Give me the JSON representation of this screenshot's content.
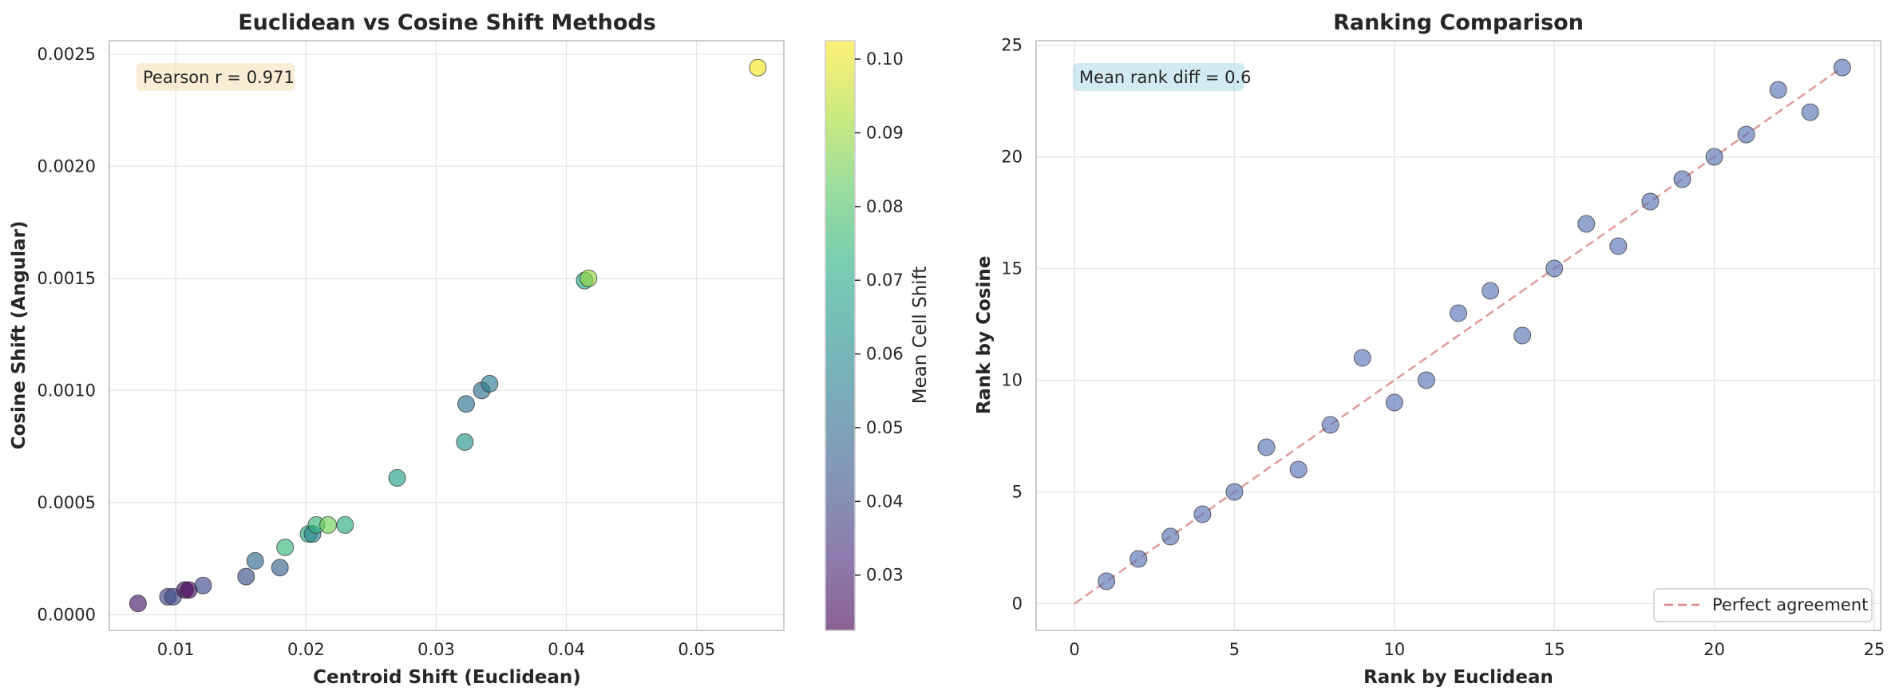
{
  "chart_data": [
    {
      "type": "scatter",
      "title": "Euclidean vs Cosine Shift Methods",
      "xlabel": "Centroid Shift (Euclidean)",
      "ylabel": "Cosine Shift (Angular)",
      "xlim": [
        0.0049,
        0.0567
      ],
      "ylim": [
        -7e-05,
        0.00256
      ],
      "xticks": [
        0.01,
        0.02,
        0.03,
        0.04,
        0.05
      ],
      "xtick_labels": [
        "0.01",
        "0.02",
        "0.03",
        "0.04",
        "0.05"
      ],
      "yticks": [
        0,
        0.0005,
        0.001,
        0.0015,
        0.002,
        0.0025
      ],
      "ytick_labels": [
        "0.0000",
        "0.0005",
        "0.0010",
        "0.0015",
        "0.0020",
        "0.0025"
      ],
      "grid": true,
      "annotation": "Pearson r = 0.971",
      "colorbar": {
        "label": "Mean Cell Shift",
        "range": [
          0.0225,
          0.1025
        ],
        "ticks": [
          0.03,
          0.04,
          0.05,
          0.06,
          0.07,
          0.08,
          0.09,
          0.1
        ],
        "tick_labels": [
          "0.03",
          "0.04",
          "0.05",
          "0.06",
          "0.07",
          "0.08",
          "0.09",
          "0.10"
        ],
        "colormap": "viridis"
      },
      "points": [
        {
          "x": 0.0071,
          "y": 5e-05,
          "c": 0.028
        },
        {
          "x": 0.0094,
          "y": 8e-05,
          "c": 0.038
        },
        {
          "x": 0.0098,
          "y": 8e-05,
          "c": 0.04
        },
        {
          "x": 0.0107,
          "y": 0.00011,
          "c": 0.025
        },
        {
          "x": 0.011,
          "y": 0.00011,
          "c": 0.024
        },
        {
          "x": 0.0121,
          "y": 0.00013,
          "c": 0.04
        },
        {
          "x": 0.0154,
          "y": 0.00017,
          "c": 0.042
        },
        {
          "x": 0.0161,
          "y": 0.00024,
          "c": 0.05
        },
        {
          "x": 0.018,
          "y": 0.00021,
          "c": 0.047
        },
        {
          "x": 0.0184,
          "y": 0.0003,
          "c": 0.075
        },
        {
          "x": 0.0202,
          "y": 0.00036,
          "c": 0.07
        },
        {
          "x": 0.0205,
          "y": 0.00036,
          "c": 0.058
        },
        {
          "x": 0.0208,
          "y": 0.0004,
          "c": 0.075
        },
        {
          "x": 0.0217,
          "y": 0.0004,
          "c": 0.085
        },
        {
          "x": 0.023,
          "y": 0.0004,
          "c": 0.072
        },
        {
          "x": 0.027,
          "y": 0.00061,
          "c": 0.068
        },
        {
          "x": 0.0322,
          "y": 0.00077,
          "c": 0.064
        },
        {
          "x": 0.0323,
          "y": 0.00094,
          "c": 0.052
        },
        {
          "x": 0.0335,
          "y": 0.001,
          "c": 0.05
        },
        {
          "x": 0.0341,
          "y": 0.00103,
          "c": 0.056
        },
        {
          "x": 0.0414,
          "y": 0.00149,
          "c": 0.068
        },
        {
          "x": 0.0417,
          "y": 0.0015,
          "c": 0.09
        },
        {
          "x": 0.0547,
          "y": 0.00244,
          "c": 0.102
        }
      ]
    },
    {
      "type": "scatter",
      "title": "Ranking Comparison",
      "xlabel": "Rank by Euclidean",
      "ylabel": "Rank by Cosine",
      "xlim": [
        -1.2,
        25.2
      ],
      "ylim": [
        -1.2,
        25.2
      ],
      "xticks": [
        0,
        5,
        10,
        15,
        20,
        25
      ],
      "yticks": [
        0,
        5,
        10,
        15,
        20,
        25
      ],
      "grid": true,
      "annotation": "Mean rank diff = 0.6",
      "legend": {
        "position": "lower-right",
        "entries": [
          "Perfect agreement"
        ]
      },
      "reference_line": {
        "name": "Perfect agreement",
        "from": [
          0,
          0
        ],
        "to": [
          24,
          24
        ]
      },
      "points": [
        {
          "x": 1,
          "y": 1
        },
        {
          "x": 2,
          "y": 2
        },
        {
          "x": 3,
          "y": 3
        },
        {
          "x": 4,
          "y": 4
        },
        {
          "x": 5,
          "y": 5
        },
        {
          "x": 6,
          "y": 7
        },
        {
          "x": 7,
          "y": 6
        },
        {
          "x": 8,
          "y": 8
        },
        {
          "x": 9,
          "y": 11
        },
        {
          "x": 10,
          "y": 9
        },
        {
          "x": 11,
          "y": 10
        },
        {
          "x": 12,
          "y": 13
        },
        {
          "x": 13,
          "y": 14
        },
        {
          "x": 14,
          "y": 12
        },
        {
          "x": 15,
          "y": 15
        },
        {
          "x": 16,
          "y": 17
        },
        {
          "x": 17,
          "y": 16
        },
        {
          "x": 18,
          "y": 18
        },
        {
          "x": 19,
          "y": 19
        },
        {
          "x": 20,
          "y": 20
        },
        {
          "x": 21,
          "y": 21
        },
        {
          "x": 22,
          "y": 23
        },
        {
          "x": 23,
          "y": 22
        },
        {
          "x": 24,
          "y": 24
        }
      ]
    }
  ],
  "colors": {
    "grid": "#e5e5e5",
    "spine": "#cccccc",
    "rank_point": "#5975b6",
    "reference_line": "#dd8888",
    "box1": "#f5deb3",
    "box2": "#add8e6"
  }
}
